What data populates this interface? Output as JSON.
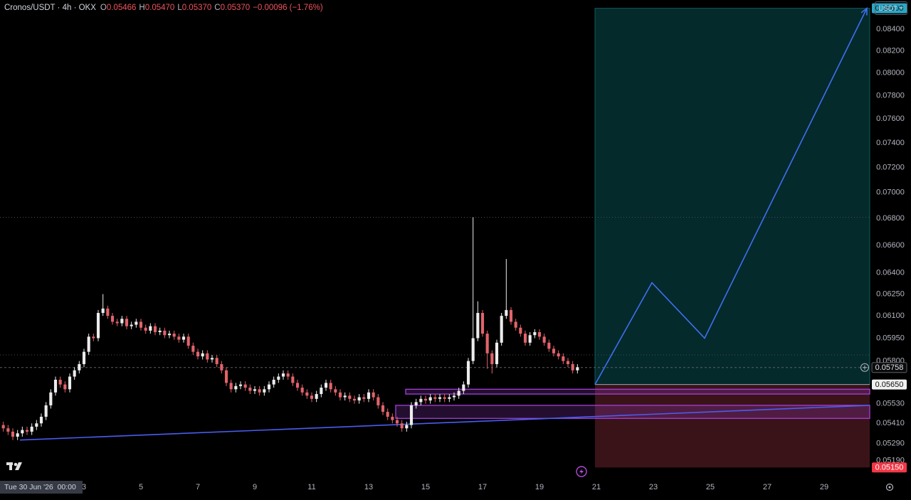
{
  "chart_data": {
    "type": "candlestick",
    "title": "Cronos/USDT · 4h · OKX",
    "ohlc_legend": [
      {
        "key": "O",
        "value": "0.05466"
      },
      {
        "key": "H",
        "value": "0.05470"
      },
      {
        "key": "L",
        "value": "0.05370"
      },
      {
        "key": "C",
        "value": "0.05370"
      }
    ],
    "change": "−0.00096 (−1.76%)",
    "currency": "USDT",
    "crosshair_time": "Tue 30 Jun '26  00:00",
    "log_scale": true,
    "grid": false,
    "up_color": "#ececec",
    "down_color": "#e2636b",
    "xlim": [
      -22.8,
      710.4
    ],
    "ylim": [
      0.0509,
      0.0868
    ],
    "xticks": [
      {
        "value": 48,
        "label": "3"
      },
      {
        "value": 96,
        "label": "5"
      },
      {
        "value": 144,
        "label": "7"
      },
      {
        "value": 192,
        "label": "9"
      },
      {
        "value": 240,
        "label": "11"
      },
      {
        "value": 288,
        "label": "13"
      },
      {
        "value": 336,
        "label": "15"
      },
      {
        "value": 384,
        "label": "17"
      },
      {
        "value": 432,
        "label": "19"
      },
      {
        "value": 480,
        "label": "21"
      },
      {
        "value": 528,
        "label": "23"
      },
      {
        "value": 576,
        "label": "25"
      },
      {
        "value": 624,
        "label": "27"
      },
      {
        "value": 672,
        "label": "29"
      }
    ],
    "yticks": [
      {
        "value": 0.084,
        "label": "0.08400"
      },
      {
        "value": 0.082,
        "label": "0.08200"
      },
      {
        "value": 0.08,
        "label": "0.08000"
      },
      {
        "value": 0.078,
        "label": "0.07800"
      },
      {
        "value": 0.076,
        "label": "0.07600"
      },
      {
        "value": 0.074,
        "label": "0.07400"
      },
      {
        "value": 0.072,
        "label": "0.07200"
      },
      {
        "value": 0.07,
        "label": "0.07000"
      },
      {
        "value": 0.068,
        "label": "0.06800"
      },
      {
        "value": 0.066,
        "label": "0.06600"
      },
      {
        "value": 0.064,
        "label": "0.06400"
      },
      {
        "value": 0.0625,
        "label": "0.06250"
      },
      {
        "value": 0.061,
        "label": "0.06100"
      },
      {
        "value": 0.0595,
        "label": "0.05950"
      },
      {
        "value": 0.058,
        "label": "0.05800"
      },
      {
        "value": 0.0553,
        "label": "0.05530"
      },
      {
        "value": 0.0541,
        "label": "0.05410"
      },
      {
        "value": 0.0529,
        "label": "0.05290"
      },
      {
        "value": 0.0519,
        "label": "0.05190"
      }
    ],
    "x": [
      -24,
      -20,
      -16,
      -12,
      -8,
      -4,
      0,
      4,
      8,
      12,
      16,
      20,
      24,
      28,
      32,
      36,
      40,
      44,
      48,
      52,
      56,
      60,
      64,
      68,
      72,
      76,
      80,
      84,
      88,
      92,
      96,
      100,
      104,
      108,
      112,
      116,
      120,
      124,
      128,
      132,
      136,
      140,
      144,
      148,
      152,
      156,
      160,
      164,
      168,
      172,
      176,
      180,
      184,
      188,
      192,
      196,
      200,
      204,
      208,
      212,
      216,
      220,
      224,
      228,
      232,
      236,
      240,
      244,
      248,
      252,
      256,
      260,
      264,
      268,
      272,
      276,
      280,
      284,
      288,
      292,
      296,
      300,
      304,
      308,
      312,
      316,
      320,
      324,
      328,
      332,
      336,
      340,
      344,
      348,
      352,
      356,
      360,
      364,
      368,
      372,
      376,
      380,
      384,
      388,
      392,
      396,
      400,
      404,
      408,
      412,
      416,
      420,
      424,
      428,
      432,
      436,
      440,
      444,
      448,
      452,
      456,
      460,
      464
    ],
    "open": [
      0.0542,
      0.054,
      0.0538,
      0.0536,
      0.0533,
      0.0535,
      0.0537,
      0.0536,
      0.0539,
      0.0541,
      0.0545,
      0.0552,
      0.056,
      0.0568,
      0.0565,
      0.0562,
      0.057,
      0.0574,
      0.0578,
      0.0586,
      0.0596,
      0.0595,
      0.0612,
      0.0615,
      0.061,
      0.0606,
      0.0605,
      0.0608,
      0.0603,
      0.0604,
      0.0606,
      0.0602,
      0.06,
      0.0603,
      0.0599,
      0.06,
      0.0597,
      0.0598,
      0.0596,
      0.0594,
      0.0596,
      0.059,
      0.0586,
      0.0583,
      0.0585,
      0.0581,
      0.0582,
      0.0578,
      0.0574,
      0.0566,
      0.0562,
      0.0564,
      0.0565,
      0.0563,
      0.0561,
      0.0562,
      0.056,
      0.0562,
      0.0565,
      0.0568,
      0.057,
      0.0572,
      0.057,
      0.0566,
      0.0563,
      0.056,
      0.0558,
      0.0556,
      0.0559,
      0.0563,
      0.0566,
      0.0562,
      0.056,
      0.0557,
      0.0558,
      0.0556,
      0.0555,
      0.0557,
      0.0556,
      0.056,
      0.0557,
      0.0552,
      0.0548,
      0.0545,
      0.0543,
      0.0541,
      0.0538,
      0.054,
      0.0552,
      0.0554,
      0.0556,
      0.0555,
      0.0557,
      0.0556,
      0.0557,
      0.0556,
      0.0557,
      0.0558,
      0.0561,
      0.0565,
      0.058,
      0.0595,
      0.0612,
      0.0598,
      0.0585,
      0.0578,
      0.0592,
      0.061,
      0.0614,
      0.0606,
      0.0602,
      0.0598,
      0.0592,
      0.0597,
      0.0599,
      0.0596,
      0.0592,
      0.0588,
      0.0585,
      0.0583,
      0.058,
      0.0578,
      0.0574
    ],
    "high": [
      0.0544,
      0.0542,
      0.054,
      0.0538,
      0.0537,
      0.0539,
      0.0539,
      0.0541,
      0.0543,
      0.0547,
      0.0554,
      0.0562,
      0.057,
      0.057,
      0.0567,
      0.0572,
      0.0576,
      0.058,
      0.0588,
      0.0598,
      0.0598,
      0.0614,
      0.0625,
      0.0617,
      0.0612,
      0.0608,
      0.061,
      0.061,
      0.0606,
      0.0608,
      0.0608,
      0.0604,
      0.0605,
      0.0605,
      0.0602,
      0.0602,
      0.06,
      0.06,
      0.0598,
      0.0598,
      0.0598,
      0.0592,
      0.0588,
      0.0587,
      0.0587,
      0.0584,
      0.0584,
      0.058,
      0.0576,
      0.0568,
      0.0566,
      0.0567,
      0.0567,
      0.0565,
      0.0564,
      0.0564,
      0.0564,
      0.0567,
      0.057,
      0.0572,
      0.0574,
      0.0574,
      0.0572,
      0.0568,
      0.0565,
      0.0562,
      0.056,
      0.0561,
      0.0565,
      0.0568,
      0.0568,
      0.0564,
      0.0562,
      0.056,
      0.056,
      0.0558,
      0.0559,
      0.0559,
      0.0562,
      0.0562,
      0.0559,
      0.0554,
      0.055,
      0.0547,
      0.0545,
      0.0543,
      0.0542,
      0.0554,
      0.0556,
      0.0558,
      0.0558,
      0.0559,
      0.0559,
      0.0559,
      0.0559,
      0.0559,
      0.056,
      0.0563,
      0.0567,
      0.0582,
      0.0681,
      0.062,
      0.0614,
      0.06,
      0.0587,
      0.0594,
      0.0612,
      0.065,
      0.0616,
      0.0608,
      0.0604,
      0.06,
      0.0599,
      0.0601,
      0.0601,
      0.0598,
      0.0594,
      0.059,
      0.0587,
      0.0585,
      0.0582,
      0.058,
      0.0578
    ],
    "low": [
      0.0538,
      0.0536,
      0.0534,
      0.0531,
      0.0531,
      0.0533,
      0.0534,
      0.0534,
      0.0537,
      0.0539,
      0.0543,
      0.055,
      0.0558,
      0.0563,
      0.056,
      0.056,
      0.0568,
      0.0572,
      0.0576,
      0.0584,
      0.0593,
      0.0593,
      0.061,
      0.0608,
      0.0604,
      0.0603,
      0.0603,
      0.0601,
      0.0601,
      0.0602,
      0.06,
      0.0598,
      0.0598,
      0.0597,
      0.0597,
      0.0595,
      0.0595,
      0.0594,
      0.0592,
      0.0592,
      0.0588,
      0.0584,
      0.0581,
      0.0581,
      0.0579,
      0.0579,
      0.0576,
      0.0572,
      0.0564,
      0.056,
      0.056,
      0.0562,
      0.0561,
      0.0559,
      0.0559,
      0.0558,
      0.0558,
      0.056,
      0.0563,
      0.0566,
      0.0568,
      0.0568,
      0.0564,
      0.0561,
      0.0558,
      0.0556,
      0.0554,
      0.0554,
      0.0557,
      0.0561,
      0.056,
      0.0558,
      0.0555,
      0.0555,
      0.0554,
      0.0553,
      0.0553,
      0.0554,
      0.0554,
      0.0555,
      0.055,
      0.0546,
      0.0543,
      0.0541,
      0.0539,
      0.0536,
      0.0536,
      0.0538,
      0.055,
      0.0552,
      0.0553,
      0.0553,
      0.0554,
      0.0554,
      0.0554,
      0.0554,
      0.0555,
      0.0556,
      0.0559,
      0.0563,
      0.0578,
      0.0593,
      0.0596,
      0.0575,
      0.0572,
      0.0576,
      0.059,
      0.0608,
      0.0604,
      0.06,
      0.0596,
      0.059,
      0.059,
      0.0595,
      0.0594,
      0.059,
      0.0586,
      0.0583,
      0.0581,
      0.0578,
      0.0576,
      0.0572,
      0.0572
    ],
    "close": [
      0.054,
      0.0538,
      0.0536,
      0.0533,
      0.0535,
      0.0537,
      0.0536,
      0.0539,
      0.0541,
      0.0545,
      0.0552,
      0.056,
      0.0568,
      0.0565,
      0.0562,
      0.057,
      0.0574,
      0.0578,
      0.0586,
      0.0596,
      0.0595,
      0.0612,
      0.0615,
      0.061,
      0.0606,
      0.0605,
      0.0608,
      0.0603,
      0.0604,
      0.0606,
      0.0602,
      0.06,
      0.0603,
      0.0599,
      0.06,
      0.0597,
      0.0598,
      0.0596,
      0.0594,
      0.0596,
      0.059,
      0.0586,
      0.0583,
      0.0585,
      0.0581,
      0.0582,
      0.0578,
      0.0574,
      0.0566,
      0.0562,
      0.0564,
      0.0565,
      0.0563,
      0.0561,
      0.0562,
      0.056,
      0.0562,
      0.0565,
      0.0568,
      0.057,
      0.0572,
      0.057,
      0.0566,
      0.0563,
      0.056,
      0.0558,
      0.0556,
      0.0559,
      0.0563,
      0.0566,
      0.0562,
      0.056,
      0.0557,
      0.0558,
      0.0556,
      0.0555,
      0.0557,
      0.0556,
      0.056,
      0.0557,
      0.0552,
      0.0548,
      0.0545,
      0.0543,
      0.0541,
      0.0538,
      0.054,
      0.0552,
      0.0554,
      0.0556,
      0.0555,
      0.0557,
      0.0556,
      0.0557,
      0.0556,
      0.0557,
      0.0558,
      0.0561,
      0.0565,
      0.058,
      0.0595,
      0.0612,
      0.0598,
      0.0585,
      0.0578,
      0.0592,
      0.061,
      0.0614,
      0.0606,
      0.0602,
      0.0598,
      0.0592,
      0.0597,
      0.0599,
      0.0596,
      0.0592,
      0.0588,
      0.0585,
      0.0583,
      0.058,
      0.0578,
      0.0574,
      0.0576
    ],
    "current_price": {
      "value": 0.05758,
      "label": "0.05758"
    },
    "hlines": [
      0.0681,
      0.0584
    ],
    "position": {
      "x": [
        478.8,
        710.4
      ],
      "entry": {
        "value": 0.0565,
        "label": "0.05650"
      },
      "target": {
        "value": 0.086,
        "label": "0.08600"
      },
      "stop": {
        "value": 0.0515,
        "label": "0.05150"
      },
      "target_color": "#042a2b",
      "stop_color": "#3a1319"
    },
    "zones": [
      {
        "x": [
          319.2,
          710.4
        ],
        "y": [
          0.0559,
          0.0562
        ]
      },
      {
        "x": [
          310.8,
          710.4
        ],
        "y": [
          0.0544,
          0.0552
        ]
      }
    ],
    "zone_color": "#a43fd8",
    "trendline": {
      "x": [
        -6,
        710.4
      ],
      "y": [
        0.0531,
        0.0552
      ],
      "color": "#4b5cf0"
    },
    "projection": {
      "x": [
        478.8,
        526.8,
        571.2,
        708
      ],
      "y": [
        0.0565,
        0.0633,
        0.0595,
        0.086
      ],
      "color": "#3e6ff2"
    }
  }
}
